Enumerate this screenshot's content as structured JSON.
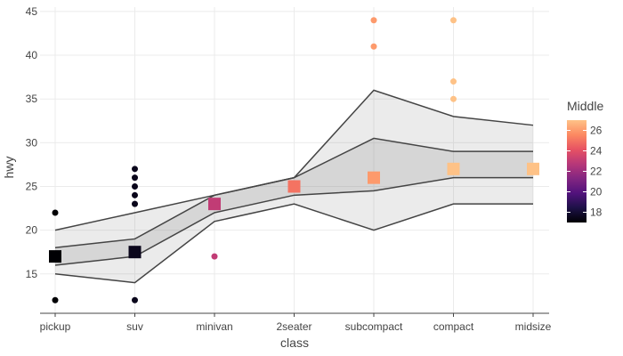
{
  "chart_data": {
    "type": "scatter",
    "xlabel": "class",
    "ylabel": "hwy",
    "categories": [
      "pickup",
      "suv",
      "minivan",
      "2seater",
      "subcompact",
      "compact",
      "midsize"
    ],
    "ylim": [
      10.5,
      45.5
    ],
    "yticks": [
      15,
      20,
      25,
      30,
      35,
      40,
      45
    ],
    "grid": true,
    "ribbons": {
      "outer_upper": [
        20,
        22,
        24,
        26,
        36,
        33,
        32
      ],
      "outer_lower": [
        15,
        14,
        21,
        23,
        20,
        23,
        23
      ],
      "inner_upper": [
        18,
        19,
        24,
        26,
        30.5,
        29,
        29
      ],
      "inner_lower": [
        16,
        17,
        22,
        24,
        24.5,
        26,
        26
      ]
    },
    "outliers": [
      {
        "x": "pickup",
        "y": 22,
        "value": 17
      },
      {
        "x": "pickup",
        "y": 12,
        "value": 17
      },
      {
        "x": "suv",
        "y": 27,
        "value": 17.5
      },
      {
        "x": "suv",
        "y": 26,
        "value": 17.5
      },
      {
        "x": "suv",
        "y": 25,
        "value": 17.5
      },
      {
        "x": "suv",
        "y": 24,
        "value": 17.5
      },
      {
        "x": "suv",
        "y": 23,
        "value": 17.5
      },
      {
        "x": "suv",
        "y": 12,
        "value": 17.5
      },
      {
        "x": "minivan",
        "y": 17,
        "value": 23
      },
      {
        "x": "subcompact",
        "y": 44,
        "value": 26
      },
      {
        "x": "subcompact",
        "y": 41,
        "value": 26
      },
      {
        "x": "compact",
        "y": 44,
        "value": 27
      },
      {
        "x": "compact",
        "y": 37,
        "value": 27
      },
      {
        "x": "compact",
        "y": 35,
        "value": 27
      }
    ],
    "middles": [
      {
        "x": "pickup",
        "y": 17,
        "value": 17
      },
      {
        "x": "suv",
        "y": 17.5,
        "value": 17.5
      },
      {
        "x": "minivan",
        "y": 23,
        "value": 23
      },
      {
        "x": "2seater",
        "y": 25,
        "value": 25
      },
      {
        "x": "subcompact",
        "y": 26,
        "value": 26
      },
      {
        "x": "compact",
        "y": 27,
        "value": 27
      },
      {
        "x": "midsize",
        "y": 27,
        "value": 27
      }
    ],
    "legend": {
      "title": "Middle",
      "position": "right",
      "range": [
        17,
        27
      ],
      "ticks": [
        18,
        20,
        22,
        24,
        26
      ]
    },
    "colorscale": [
      "#000004",
      "#1d1147",
      "#51127c",
      "#822681",
      "#b73779",
      "#e75263",
      "#fc8961",
      "#fec287"
    ]
  }
}
